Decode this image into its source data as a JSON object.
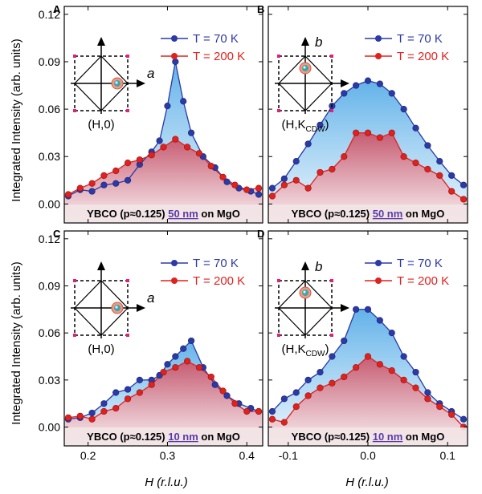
{
  "figure": {
    "ylabel": "Integrated Intensity (arb. units)",
    "xlabel_left": "H (r.l.u.)",
    "xlabel_right": "H (r.l.u.)"
  },
  "colors": {
    "low_T": "#2b3aa6",
    "high_T": "#e0221f",
    "fill_low": "#5aaee8",
    "fill_high": "#c9566b",
    "sample_bar": "#f2e4e6",
    "scale_text": "#5b3aa8"
  },
  "icons": [
    "reciprocal-lattice-inset",
    "cdw-peak-marker"
  ],
  "chart_data": [
    {
      "panel": "A",
      "type": "line",
      "x_range": [
        0.17,
        0.42
      ],
      "ylim": [
        -0.012,
        0.125
      ],
      "x_ticks": [
        0.2,
        0.3,
        0.4
      ],
      "y_ticks": [
        0.0,
        0.03,
        0.06,
        0.09,
        0.12
      ],
      "y_tick_labels": [
        "0.00",
        "0.03",
        "0.06",
        "0.09",
        "0.12"
      ],
      "legend": [
        "T = 70 K",
        "T = 200 K"
      ],
      "inset_axis_label": "a",
      "inset_caption": "(H,0)",
      "sample": {
        "prefix": "YBCO (p≈0.125)",
        "thickness": "50 nm",
        "suffix": "on MgO"
      },
      "series": [
        {
          "name": "T = 70 K",
          "x": [
            0.175,
            0.19,
            0.205,
            0.22,
            0.235,
            0.25,
            0.265,
            0.28,
            0.29,
            0.3,
            0.31,
            0.32,
            0.33,
            0.345,
            0.36,
            0.375,
            0.39,
            0.405,
            0.415
          ],
          "y": [
            0.005,
            0.009,
            0.008,
            0.012,
            0.013,
            0.015,
            0.025,
            0.033,
            0.04,
            0.062,
            0.09,
            0.065,
            0.045,
            0.03,
            0.023,
            0.014,
            0.01,
            0.008,
            0.006
          ]
        },
        {
          "name": "T = 200 K",
          "x": [
            0.175,
            0.19,
            0.205,
            0.22,
            0.235,
            0.25,
            0.265,
            0.28,
            0.295,
            0.31,
            0.325,
            0.34,
            0.355,
            0.37,
            0.385,
            0.4,
            0.415
          ],
          "y": [
            0.006,
            0.01,
            0.013,
            0.018,
            0.021,
            0.026,
            0.028,
            0.031,
            0.036,
            0.041,
            0.036,
            0.032,
            0.024,
            0.017,
            0.012,
            0.009,
            0.01
          ]
        }
      ]
    },
    {
      "panel": "B",
      "type": "line",
      "x_range": [
        -0.125,
        0.125
      ],
      "ylim": [
        -0.012,
        0.125
      ],
      "x_ticks": [
        -0.1,
        0.0,
        0.1
      ],
      "y_ticks": [
        0.0,
        0.03,
        0.06,
        0.09,
        0.12
      ],
      "legend": [
        "T = 70 K",
        "T = 200 K"
      ],
      "inset_axis_label": "b",
      "inset_caption": "(H,K",
      "inset_caption_sub": "CDW",
      "inset_caption_end": ")",
      "sample": {
        "prefix": "YBCO (p≈0.125)",
        "thickness": "50 nm",
        "suffix": "on MgO"
      },
      "series": [
        {
          "name": "T = 70 K",
          "x": [
            -0.12,
            -0.105,
            -0.09,
            -0.075,
            -0.06,
            -0.045,
            -0.03,
            -0.015,
            0.0,
            0.015,
            0.03,
            0.045,
            0.06,
            0.075,
            0.09,
            0.105,
            0.12
          ],
          "y": [
            0.01,
            0.016,
            0.027,
            0.038,
            0.05,
            0.062,
            0.07,
            0.075,
            0.078,
            0.076,
            0.07,
            0.06,
            0.048,
            0.037,
            0.027,
            0.018,
            0.012
          ]
        },
        {
          "name": "T = 200 K",
          "x": [
            -0.12,
            -0.105,
            -0.09,
            -0.075,
            -0.06,
            -0.045,
            -0.03,
            -0.015,
            0.0,
            0.015,
            0.03,
            0.045,
            0.06,
            0.075,
            0.09,
            0.105,
            0.12
          ],
          "y": [
            0.005,
            0.012,
            0.015,
            0.01,
            0.02,
            0.022,
            0.03,
            0.045,
            0.045,
            0.042,
            0.045,
            0.03,
            0.026,
            0.022,
            0.018,
            0.008,
            0.003
          ]
        }
      ]
    },
    {
      "panel": "C",
      "type": "line",
      "x_range": [
        0.17,
        0.42
      ],
      "ylim": [
        -0.012,
        0.125
      ],
      "x_ticks": [
        0.2,
        0.3,
        0.4
      ],
      "x_tick_labels": [
        "0.2",
        "0.3",
        "0.4"
      ],
      "y_ticks": [
        0.0,
        0.03,
        0.06,
        0.09,
        0.12
      ],
      "y_tick_labels": [
        "0.00",
        "0.03",
        "0.06",
        "0.09",
        "0.12"
      ],
      "legend": [
        "T = 70 K",
        "T = 200 K"
      ],
      "inset_axis_label": "a",
      "inset_caption": "(H,0)",
      "sample": {
        "prefix": "YBCO (p≈0.125)",
        "thickness": "10 nm",
        "suffix": "on MgO"
      },
      "series": [
        {
          "name": "T = 70 K",
          "x": [
            0.175,
            0.19,
            0.205,
            0.22,
            0.235,
            0.25,
            0.265,
            0.28,
            0.29,
            0.3,
            0.31,
            0.32,
            0.33,
            0.345,
            0.36,
            0.375,
            0.39,
            0.405,
            0.415
          ],
          "y": [
            0.005,
            0.006,
            0.009,
            0.015,
            0.022,
            0.024,
            0.03,
            0.03,
            0.033,
            0.04,
            0.045,
            0.05,
            0.055,
            0.038,
            0.027,
            0.02,
            0.015,
            0.012,
            0.01
          ]
        },
        {
          "name": "T = 200 K",
          "x": [
            0.175,
            0.19,
            0.205,
            0.22,
            0.235,
            0.25,
            0.265,
            0.28,
            0.295,
            0.31,
            0.325,
            0.34,
            0.355,
            0.37,
            0.385,
            0.4,
            0.415
          ],
          "y": [
            0.006,
            0.007,
            0.005,
            0.01,
            0.012,
            0.018,
            0.022,
            0.027,
            0.035,
            0.038,
            0.042,
            0.038,
            0.032,
            0.023,
            0.015,
            0.01,
            0.01
          ]
        }
      ]
    },
    {
      "panel": "D",
      "type": "line",
      "x_range": [
        -0.125,
        0.125
      ],
      "ylim": [
        -0.012,
        0.125
      ],
      "x_ticks": [
        -0.1,
        0.0,
        0.1
      ],
      "x_tick_labels": [
        "-0.1",
        "0.0",
        "0.1"
      ],
      "y_ticks": [
        0.0,
        0.03,
        0.06,
        0.09,
        0.12
      ],
      "legend": [
        "T = 70 K",
        "T = 200 K"
      ],
      "inset_axis_label": "b",
      "inset_caption": "(H,K",
      "inset_caption_sub": "CDW",
      "inset_caption_end": ")",
      "sample": {
        "prefix": "YBCO (p≈0.125)",
        "thickness": "10 nm",
        "suffix": "on MgO"
      },
      "series": [
        {
          "name": "T = 70 K",
          "x": [
            -0.12,
            -0.105,
            -0.09,
            -0.075,
            -0.06,
            -0.045,
            -0.03,
            -0.015,
            0.0,
            0.015,
            0.03,
            0.045,
            0.06,
            0.075,
            0.09,
            0.105,
            0.12
          ],
          "y": [
            0.01,
            0.018,
            0.022,
            0.03,
            0.035,
            0.045,
            0.055,
            0.075,
            0.075,
            0.068,
            0.06,
            0.045,
            0.035,
            0.022,
            0.015,
            0.01,
            0.005
          ]
        },
        {
          "name": "T = 200 K",
          "x": [
            -0.12,
            -0.105,
            -0.09,
            -0.075,
            -0.06,
            -0.045,
            -0.03,
            -0.015,
            0.0,
            0.015,
            0.03,
            0.045,
            0.06,
            0.075,
            0.09,
            0.105,
            0.12
          ],
          "y": [
            0.005,
            0.003,
            0.013,
            0.02,
            0.025,
            0.028,
            0.032,
            0.038,
            0.045,
            0.04,
            0.036,
            0.03,
            0.025,
            0.018,
            0.013,
            0.008,
            0.0
          ]
        }
      ]
    }
  ]
}
